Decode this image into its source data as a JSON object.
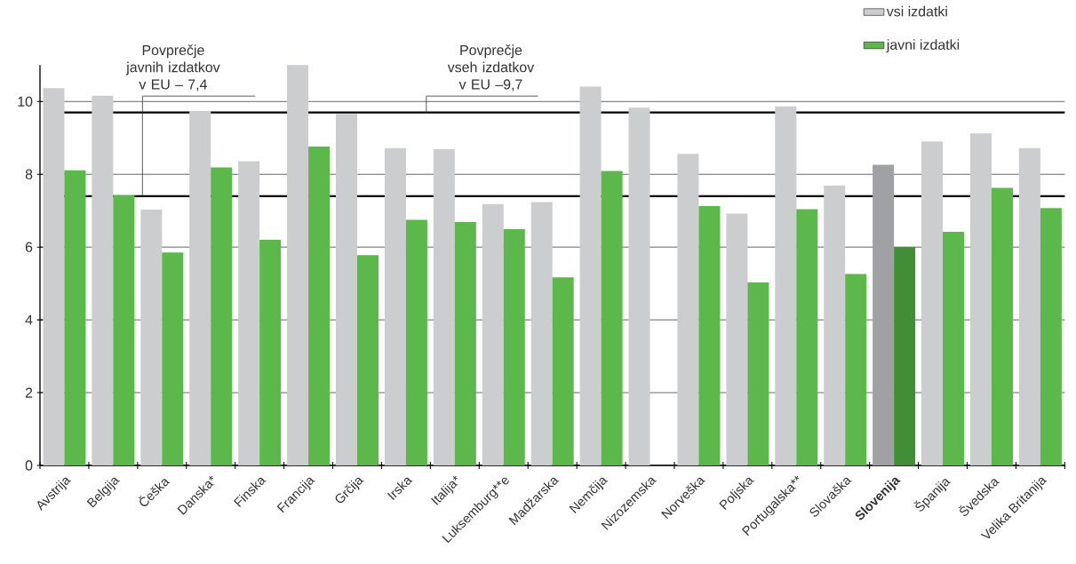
{
  "chart_data": {
    "type": "bar",
    "categories": [
      "Avstrija",
      "Belgija",
      "Češka",
      "Danska*",
      "Finska",
      "Francija",
      "Grčija",
      "Irska",
      "Italija*",
      "Luksemburg**e",
      "Madžarska",
      "Nemčija",
      "Nizozemska",
      "Norveška",
      "Poljska",
      "Portugalska**",
      "Slovaška",
      "**Slovenija**",
      "Španija",
      "Švedska",
      "Velika Britanija"
    ],
    "series": [
      {
        "name": "vsi izdatki",
        "color": "#cccdcf",
        "colors": [
          "#cccdcf",
          "#cccdcf",
          "#cccdcf",
          "#cccdcf",
          "#cccdcf",
          "#cccdcf",
          "#cccdcf",
          "#cccdcf",
          "#cccdcf",
          "#cccdcf",
          "#cccdcf",
          "#cccdcf",
          "#cccdcf",
          "#cccdcf",
          "#cccdcf",
          "#cccdcf",
          "#cccdcf",
          "#a0a1a4",
          "#cccdcf",
          "#cccdcf",
          "#cccdcf"
        ],
        "values": [
          10.37,
          10.16,
          7.03,
          9.74,
          8.36,
          11.0,
          9.66,
          8.72,
          8.69,
          7.18,
          7.24,
          10.41,
          9.83,
          8.56,
          6.92,
          9.87,
          7.69,
          8.26,
          8.9,
          9.12,
          8.72
        ]
      },
      {
        "name": "javni izdatki",
        "color": "#5cb84a",
        "colors": [
          "#5cb84a",
          "#5cb84a",
          "#5cb84a",
          "#5cb84a",
          "#5cb84a",
          "#5cb84a",
          "#5cb84a",
          "#5cb84a",
          "#5cb84a",
          "#5cb84a",
          "#5cb84a",
          "#5cb84a",
          "#5cb84a",
          "#5cb84a",
          "#5cb84a",
          "#5cb84a",
          "#5cb84a",
          "#418e36",
          "#5cb84a",
          "#5cb84a",
          "#5cb84a"
        ],
        "values": [
          8.11,
          7.42,
          5.85,
          8.19,
          6.2,
          8.76,
          5.78,
          6.75,
          6.69,
          6.49,
          5.17,
          8.09,
          null,
          7.13,
          5.03,
          7.04,
          5.26,
          6.0,
          6.42,
          7.63,
          7.07
        ]
      }
    ],
    "ylim": [
      0,
      11
    ],
    "yticks": [
      0,
      2,
      4,
      6,
      8,
      10
    ],
    "grid": "y",
    "legend": "top right",
    "ref_lines": [
      {
        "axis": "y",
        "value": 7.4,
        "label": "Povprečje javnih izdatkov v EU – 7,4",
        "color": "#000000"
      },
      {
        "axis": "y",
        "value": 9.7,
        "label": "Povprečje vseh izdatkov v EU –9,7",
        "color": "#000000"
      }
    ]
  }
}
